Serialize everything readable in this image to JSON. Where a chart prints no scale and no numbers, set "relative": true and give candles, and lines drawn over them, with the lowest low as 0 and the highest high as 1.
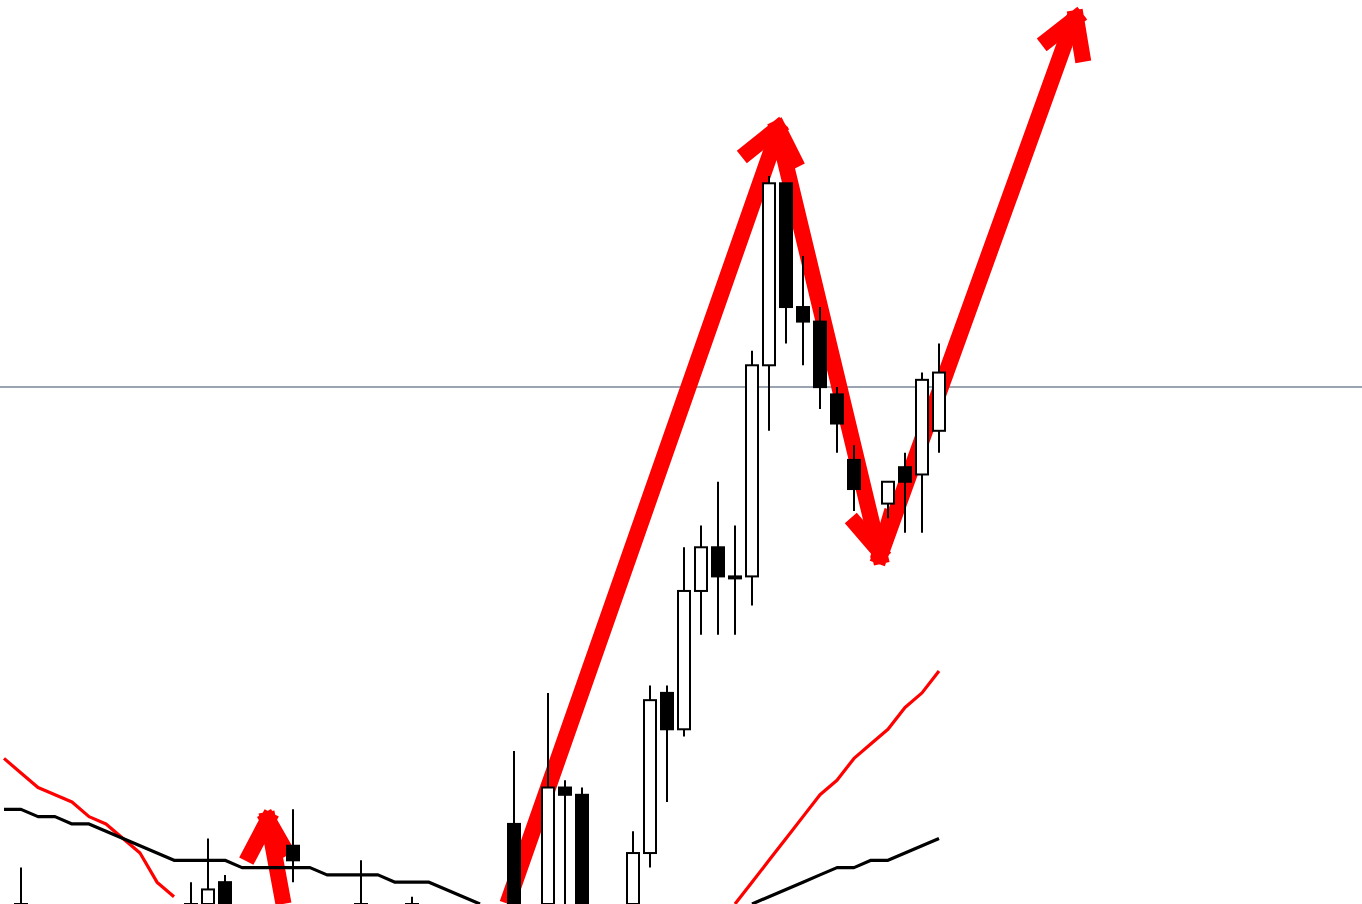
{
  "chart_data": {
    "type": "candlestick",
    "relative": true,
    "categories": [
      null,
      null,
      null,
      null,
      null,
      null,
      null,
      null,
      null,
      null,
      null,
      null,
      null,
      null,
      null,
      null,
      null,
      null,
      null,
      null,
      null,
      null,
      null,
      null,
      null,
      null,
      null,
      null,
      null,
      null,
      null,
      null,
      null,
      null,
      null,
      null,
      null,
      null,
      null,
      null,
      null,
      null,
      null,
      null,
      null,
      null,
      null,
      null,
      null,
      null,
      null,
      null,
      null,
      null,
      null,
      null,
      null,
      null,
      null,
      null,
      null,
      null,
      null,
      null,
      null,
      null,
      null,
      null,
      null,
      null,
      null,
      null,
      null,
      null,
      null,
      null,
      null,
      null,
      null,
      null
    ],
    "ohlc": [
      null,
      [
        0,
        0.05,
        0,
        0
      ],
      null,
      null,
      null,
      null,
      null,
      null,
      null,
      null,
      null,
      [
        0,
        0.03,
        0,
        0
      ],
      [
        0,
        0.09,
        0,
        0.02
      ],
      [
        0.03,
        0.04,
        0,
        0
      ],
      null,
      null,
      null,
      [
        0.08,
        0.13,
        0.03,
        0.06
      ],
      null,
      null,
      null,
      [
        0,
        0.06,
        0,
        0
      ],
      null,
      null,
      [
        0,
        0.01,
        0,
        0
      ],
      null,
      null,
      null,
      null,
      null,
      [
        0.11,
        0.21,
        0,
        0
      ],
      null,
      [
        0,
        0.29,
        0,
        0.16
      ],
      [
        0.16,
        0.17,
        0,
        0.15
      ],
      [
        0.15,
        0.16,
        0,
        0
      ],
      null,
      null,
      [
        0,
        0.1,
        0,
        0.07
      ],
      [
        0.07,
        0.3,
        0.05,
        0.28
      ],
      [
        0.29,
        0.3,
        0.14,
        0.24
      ],
      [
        0.24,
        0.49,
        0.23,
        0.43
      ],
      [
        0.43,
        0.52,
        0.37,
        0.49
      ],
      [
        0.49,
        0.58,
        0.37,
        0.45
      ],
      [
        0.45,
        0.52,
        0.37,
        0.45
      ],
      [
        0.45,
        0.76,
        0.41,
        0.74
      ],
      [
        0.74,
        1,
        0.65,
        0.99
      ],
      [
        0.99,
        0.99,
        0.77,
        0.82
      ],
      [
        0.82,
        0.89,
        0.74,
        0.8
      ],
      [
        0.8,
        0.82,
        0.68,
        0.71
      ],
      [
        0.7,
        0.71,
        0.62,
        0.66
      ],
      [
        0.61,
        0.63,
        0.54,
        0.57
      ],
      null,
      [
        0.55,
        0.58,
        0.53,
        0.58
      ],
      [
        0.6,
        0.62,
        0.51,
        0.58
      ],
      [
        0.59,
        0.73,
        0.51,
        0.72
      ],
      [
        0.65,
        0.77,
        0.62,
        0.73
      ],
      null,
      null,
      null,
      null,
      null,
      null,
      null,
      null,
      null,
      null,
      null,
      null,
      null,
      null,
      null,
      null,
      null,
      null,
      null,
      null,
      null,
      null,
      null,
      null
    ],
    "series": [
      {
        "type": "line",
        "color": "#ff0000",
        "values": [
          0.2,
          0.18,
          0.16,
          0.15,
          0.14,
          0.12,
          0.11,
          0.09,
          0.07,
          0.03,
          0.01,
          null,
          null,
          null,
          null,
          null,
          null,
          null,
          null,
          null,
          null,
          null,
          null,
          null,
          null,
          null,
          null,
          null,
          null,
          null,
          null,
          null,
          null,
          null,
          null,
          null,
          null,
          null,
          null,
          null,
          null,
          null,
          null,
          0,
          0.03,
          0.06,
          0.09,
          0.12,
          0.15,
          0.17,
          0.2,
          0.22,
          0.24,
          0.27,
          0.29,
          0.32,
          null,
          null,
          null,
          null,
          null,
          null,
          null,
          null,
          null,
          null,
          null,
          null,
          null,
          null,
          null,
          null,
          null,
          null,
          null,
          null,
          null,
          null,
          null,
          null
        ]
      },
      {
        "type": "line",
        "color": "#000000",
        "values": [
          0.13,
          0.13,
          0.12,
          0.12,
          0.11,
          0.11,
          0.1,
          0.09,
          0.08,
          0.07,
          0.06,
          0.06,
          0.06,
          0.06,
          0.05,
          0.05,
          0.05,
          0.05,
          0.05,
          0.04,
          0.04,
          0.04,
          0.04,
          0.03,
          0.03,
          0.03,
          0.02,
          0.01,
          0,
          null,
          null,
          null,
          null,
          null,
          null,
          null,
          null,
          null,
          null,
          null,
          null,
          null,
          null,
          null,
          0,
          0.01,
          0.02,
          0.03,
          0.04,
          0.05,
          0.05,
          0.06,
          0.06,
          0.07,
          0.08,
          0.09,
          null,
          null,
          null,
          null,
          null,
          null,
          null,
          null,
          null,
          null,
          null,
          null,
          null,
          null,
          null,
          null,
          null,
          null,
          null,
          null,
          null,
          null,
          null,
          null
        ]
      }
    ],
    "ref_lines": [
      {
        "axis": "y",
        "value": 0.71,
        "color": "#9aa5b1"
      }
    ]
  }
}
